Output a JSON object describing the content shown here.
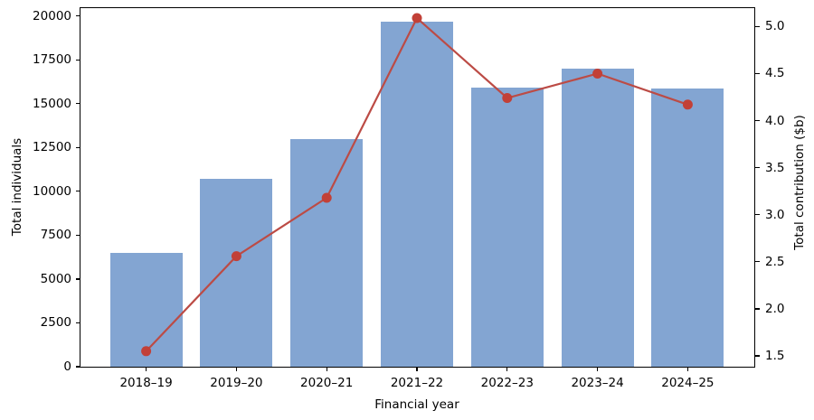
{
  "chart_data": {
    "type": "bar+line",
    "title": "",
    "categories": [
      "2018–19",
      "2019–20",
      "2020–21",
      "2021–22",
      "2022–23",
      "2023–24",
      "2024–25"
    ],
    "series": [
      {
        "name": "Total individuals",
        "chart": "bar",
        "axis": "left",
        "values": [
          6500,
          10700,
          13000,
          19700,
          15900,
          17000,
          15850
        ]
      },
      {
        "name": "Total contribution ($b)",
        "chart": "line",
        "axis": "right",
        "values": [
          1.55,
          2.56,
          3.18,
          5.09,
          4.24,
          4.5,
          4.17
        ]
      }
    ],
    "xlabel": "Financial year",
    "left_axis": {
      "label": "Total individuals",
      "ticks": [
        0,
        2500,
        5000,
        7500,
        10000,
        12500,
        15000,
        17500,
        20000
      ],
      "range": [
        0,
        20500
      ]
    },
    "right_axis": {
      "label": "Total contribution ($b)",
      "ticks": [
        1.5,
        2.0,
        2.5,
        3.0,
        3.5,
        4.0,
        4.5,
        5.0
      ],
      "range": [
        1.385,
        5.205
      ]
    },
    "grid": false,
    "legend": "none",
    "colors": {
      "bar": "#83a5d2",
      "line": "#bc4b45",
      "marker": "#c24037",
      "text": "#000000",
      "spine": "#000000",
      "background": "#ffffff"
    }
  }
}
